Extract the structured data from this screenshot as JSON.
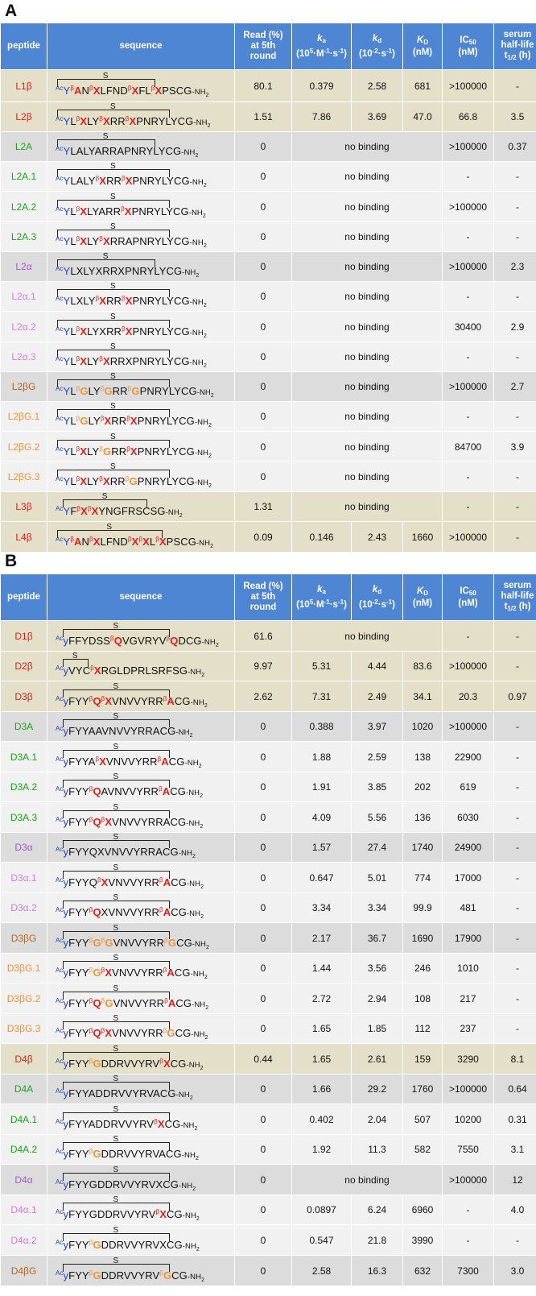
{
  "panels": [
    {
      "label": "A",
      "header": {
        "peptide": "peptide",
        "sequence": "sequence",
        "read": [
          "Read (%)",
          "at 5th",
          "round"
        ],
        "ka": [
          "k",
          "a",
          "(10",
          "5",
          "·M",
          "-1",
          "·s",
          "-1",
          ")"
        ],
        "kd": [
          "k",
          "d",
          "(10",
          "-2",
          "·s",
          "-1",
          ")"
        ],
        "KD": [
          "K",
          "D",
          "(nM)"
        ],
        "IC50": [
          "IC",
          "50",
          "(nM)"
        ],
        "serum": [
          "serum",
          "half-life",
          "t",
          "1/2",
          " (h)"
        ]
      },
      "rows": [
        {
          "peptide": "L1β",
          "pepColor": "#e0201b",
          "bg": "tan",
          "seq": "AcYβANβXLFNDβXFLβXPSCG-NH2",
          "read": "80.1",
          "ka": "0.379",
          "kd": "2.58",
          "KD": "681",
          "IC50": ">100000",
          "serum": "-"
        },
        {
          "peptide": "L2β",
          "pepColor": "#e0201b",
          "bg": "tan",
          "seq": "AcYLβXLYβXRRβXPNRYLYCG-NH2",
          "read": "1.51",
          "ka": "7.86",
          "kd": "3.69",
          "KD": "47.0",
          "IC50": "66.8",
          "serum": "3.5"
        },
        {
          "peptide": "L2A",
          "pepColor": "#1aa51a",
          "bg": "gray",
          "seq": "AcYLALYARRAPNRYLYCG-NH2",
          "read": "0",
          "nobinding": "no binding",
          "IC50": ">100000",
          "serum": "0.37"
        },
        {
          "peptide": "L2A.1",
          "pepColor": "#1aa51a",
          "bg": "light",
          "seq": "AcYLALYβXRRβXPNRYLYCG-NH2",
          "read": "0",
          "nobinding": "no binding",
          "IC50": "-",
          "serum": "-"
        },
        {
          "peptide": "L2A.2",
          "pepColor": "#1aa51a",
          "bg": "light",
          "seq": "AcYLβXLYARRβXPNRYLYCG-NH2",
          "read": "0",
          "nobinding": "no binding",
          "IC50": ">100000",
          "serum": "-"
        },
        {
          "peptide": "L2A.3",
          "pepColor": "#1aa51a",
          "bg": "light",
          "seq": "AcYLβXLYβXRRAPNRYLYCG-NH2",
          "read": "0",
          "nobinding": "no binding",
          "IC50": "-",
          "serum": "-"
        },
        {
          "peptide": "L2α",
          "pepColor": "#a355d4",
          "bg": "gray",
          "seq": "AcYLXLYXRRXPNRYLYCG-NH2",
          "read": "0",
          "nobinding": "no binding",
          "IC50": ">100000",
          "serum": "2.3"
        },
        {
          "peptide": "L2α.1",
          "pepColor": "#d77be0",
          "bg": "light",
          "seq": "AcYLXLYβXRRβXPNRYLYCG-NH2",
          "read": "0",
          "nobinding": "no binding",
          "IC50": "-",
          "serum": "-"
        },
        {
          "peptide": "L2α.2",
          "pepColor": "#d77be0",
          "bg": "light",
          "seq": "AcYLβXLYXRRβXPNRYLYCG-NH2",
          "read": "0",
          "nobinding": "no binding",
          "IC50": "30400",
          "serum": "2.9"
        },
        {
          "peptide": "L2α.3",
          "pepColor": "#d77be0",
          "bg": "light",
          "seq": "AcYLβXLYβXRRXPNRYLYCG-NH2",
          "read": "0",
          "nobinding": "no binding",
          "IC50": "-",
          "serum": "-"
        },
        {
          "peptide": "L2βG",
          "pepColor": "#b5651d",
          "bg": "gray",
          "seq": "AcYLβGLYβGRRβGPNRYLYCG-NH2",
          "read": "0",
          "nobinding": "no binding",
          "IC50": ">100000",
          "serum": "2.7"
        },
        {
          "peptide": "L2βG.1",
          "pepColor": "#f0923a",
          "bg": "light",
          "seq": "AcYLβGLYβXRRβXPNRYLYCG-NH2",
          "read": "0",
          "nobinding": "no binding",
          "IC50": "-",
          "serum": "-"
        },
        {
          "peptide": "L2βG.2",
          "pepColor": "#f0923a",
          "bg": "light",
          "seq": "AcYLβXLYβGRRβXPNRYLYCG-NH2",
          "read": "0",
          "nobinding": "no binding",
          "IC50": "84700",
          "serum": "3.9"
        },
        {
          "peptide": "L2βG.3",
          "pepColor": "#f0923a",
          "bg": "light",
          "seq": "AcYLβXLYβXRRβGPNRYLYCG-NH2",
          "read": "0",
          "nobinding": "no binding",
          "IC50": "-",
          "serum": "-"
        },
        {
          "peptide": "L3β",
          "pepColor": "#e0201b",
          "bg": "tan",
          "seq": "AcYFβXβXYNGFRSCSG-NH2",
          "read": "1.31",
          "nobinding": "no binding",
          "IC50": "-",
          "serum": "-"
        },
        {
          "peptide": "L4β",
          "pepColor": "#e0201b",
          "bg": "tan",
          "seq": "AcYβANβXLFNDβXβXLβXPSCG-NH2",
          "read": "0.09",
          "ka": "0.146",
          "kd": "2.43",
          "KD": "1660",
          "IC50": ">100000",
          "serum": "-"
        }
      ]
    },
    {
      "label": "B",
      "header": {
        "peptide": "peptide",
        "sequence": "sequence",
        "read": [
          "Read (%)",
          "at 5th",
          "round"
        ],
        "ka": [
          "k",
          "a",
          "(10",
          "5",
          "·M",
          "-1",
          "·s",
          "-1",
          ")"
        ],
        "kd": [
          "k",
          "d",
          "(10",
          "-2",
          "·s",
          "-1",
          ")"
        ],
        "KD": [
          "K",
          "D",
          "(nM)"
        ],
        "IC50": [
          "IC",
          "50",
          "(nM)"
        ],
        "serum": [
          "serum",
          "half-life",
          "t",
          "1/2",
          " (h)"
        ]
      },
      "rows": [
        {
          "peptide": "D1β",
          "pepColor": "#e0201b",
          "bg": "tan",
          "seq": "AcyFFYDSSβQVGVRYVβQDCG-NH2",
          "read": "61.6",
          "nobinding": "no binding",
          "IC50": "-",
          "serum": "-"
        },
        {
          "peptide": "D2β",
          "pepColor": "#e0201b",
          "bg": "tan",
          "seq": "AcyVYCβXRGLDPRLSRFSG-NH2",
          "read": "9.97",
          "ka": "5.31",
          "kd": "4.44",
          "KD": "83.6",
          "IC50": ">100000",
          "serum": "-"
        },
        {
          "peptide": "D3β",
          "pepColor": "#e0201b",
          "bg": "tan",
          "seq": "AcyFYYβQβXVNVVYRRβACG-NH2",
          "read": "2.62",
          "ka": "7.31",
          "kd": "2.49",
          "KD": "34.1",
          "IC50": "20.3",
          "serum": "0.97"
        },
        {
          "peptide": "D3A",
          "pepColor": "#1aa51a",
          "bg": "gray",
          "seq": "AcyFYYAAVNVVYRRACG-NH2",
          "read": "0",
          "ka": "0.388",
          "kd": "3.97",
          "KD": "1020",
          "IC50": ">100000",
          "serum": "-"
        },
        {
          "peptide": "D3A.1",
          "pepColor": "#1aa51a",
          "bg": "light",
          "seq": "AcyFYYAβXVNVVYRRβACG-NH2",
          "read": "0",
          "ka": "1.88",
          "kd": "2.59",
          "KD": "138",
          "IC50": "22900",
          "serum": "-"
        },
        {
          "peptide": "D3A.2",
          "pepColor": "#1aa51a",
          "bg": "light",
          "seq": "AcyFYYβQAVNVVYRRβACG-NH2",
          "read": "0",
          "ka": "1.91",
          "kd": "3.85",
          "KD": "202",
          "IC50": "619",
          "serum": "-"
        },
        {
          "peptide": "D3A.3",
          "pepColor": "#1aa51a",
          "bg": "light",
          "seq": "AcyFYYβQβXVNVVYRRACG-NH2",
          "read": "0",
          "ka": "4.09",
          "kd": "5.56",
          "KD": "136",
          "IC50": "6030",
          "serum": "-"
        },
        {
          "peptide": "D3α",
          "pepColor": "#a355d4",
          "bg": "gray",
          "seq": "AcyFYYQXVNVVYRRACG-NH2",
          "read": "0",
          "ka": "1.57",
          "kd": "27.4",
          "KD": "1740",
          "IC50": "24900",
          "serum": "-"
        },
        {
          "peptide": "D3α.1",
          "pepColor": "#d77be0",
          "bg": "light",
          "seq": "AcyFYYQβXVNVVYRRβACG-NH2",
          "read": "0",
          "ka": "0.647",
          "kd": "5.01",
          "KD": "774",
          "IC50": "17000",
          "serum": "-"
        },
        {
          "peptide": "D3α.2",
          "pepColor": "#d77be0",
          "bg": "light",
          "seq": "AcyFYYβQXVNVVYRRβACG-NH2",
          "read": "0",
          "ka": "3.34",
          "kd": "3.34",
          "KD": "99.9",
          "IC50": "481",
          "serum": "-"
        },
        {
          "peptide": "D3βG",
          "pepColor": "#b5651d",
          "bg": "gray",
          "seq": "AcyFYYβGβGVNVVYRRβGCG-NH2",
          "read": "0",
          "ka": "2.17",
          "kd": "36.7",
          "KD": "1690",
          "IC50": "17900",
          "serum": "-"
        },
        {
          "peptide": "D3βG.1",
          "pepColor": "#f0923a",
          "bg": "light",
          "seq": "AcyFYYβGβXVNVVYRRβACG-NH2",
          "read": "0",
          "ka": "1.44",
          "kd": "3.56",
          "KD": "246",
          "IC50": "1010",
          "serum": "-"
        },
        {
          "peptide": "D3βG.2",
          "pepColor": "#f0923a",
          "bg": "light",
          "seq": "AcyFYYβQβGVNVVYRRβACG-NH2",
          "read": "0",
          "ka": "2.72",
          "kd": "2.94",
          "KD": "108",
          "IC50": "217",
          "serum": "-"
        },
        {
          "peptide": "D3βG.3",
          "pepColor": "#f0923a",
          "bg": "light",
          "seq": "AcyFYYβQβXVNVVYRRβGCG-NH2",
          "read": "0",
          "ka": "1.65",
          "kd": "1.85",
          "KD": "112",
          "IC50": "237",
          "serum": "-"
        },
        {
          "peptide": "D4β",
          "pepColor": "#e0201b",
          "bg": "tan",
          "seq": "AcyFYYβGDDRVVYRVβXCG-NH2",
          "read": "0.44",
          "ka": "1.65",
          "kd": "2.61",
          "KD": "159",
          "IC50": "3290",
          "serum": "8.1"
        },
        {
          "peptide": "D4A",
          "pepColor": "#1aa51a",
          "bg": "gray",
          "seq": "AcyFYYADDRVVYRVACG-NH2",
          "read": "0",
          "ka": "1.66",
          "kd": "29.2",
          "KD": "1760",
          "IC50": ">100000",
          "serum": "0.64"
        },
        {
          "peptide": "D4A.1",
          "pepColor": "#1aa51a",
          "bg": "light",
          "seq": "AcyFYYADDRVVYRVβXCG-NH2",
          "read": "0",
          "ka": "0.402",
          "kd": "2.04",
          "KD": "507",
          "IC50": "10200",
          "serum": "0.31"
        },
        {
          "peptide": "D4A.2",
          "pepColor": "#1aa51a",
          "bg": "light",
          "seq": "AcyFYYβGDDRVVYRVACG-NH2",
          "read": "0",
          "ka": "1.92",
          "kd": "11.3",
          "KD": "582",
          "IC50": "7550",
          "serum": "3.1"
        },
        {
          "peptide": "D4α",
          "pepColor": "#a355d4",
          "bg": "gray",
          "seq": "AcyFYYGDDRVVYRVXCG-NH2",
          "read": "0",
          "nobinding": "no binding",
          "IC50": ">100000",
          "serum": "12"
        },
        {
          "peptide": "D4α.1",
          "pepColor": "#d77be0",
          "bg": "light",
          "seq": "AcyFYYGDDRVVYRVβXCG-NH2",
          "read": "0",
          "ka": "0.0897",
          "kd": "6.24",
          "KD": "6960",
          "IC50": "-",
          "serum": "4.0"
        },
        {
          "peptide": "D4α.2",
          "pepColor": "#d77be0",
          "bg": "light",
          "seq": "AcyFYYβGDDRVVYRVXCG-NH2",
          "read": "0",
          "ka": "0.547",
          "kd": "21.8",
          "KD": "3990",
          "IC50": "-",
          "serum": "-"
        },
        {
          "peptide": "D4βG",
          "pepColor": "#b5651d",
          "bg": "gray",
          "seq": "AcyFYYβGDDRVVYRVβGCG-NH2",
          "read": "0",
          "ka": "2.58",
          "kd": "16.3",
          "KD": "632",
          "IC50": "7300",
          "serum": "3.0"
        }
      ]
    }
  ]
}
